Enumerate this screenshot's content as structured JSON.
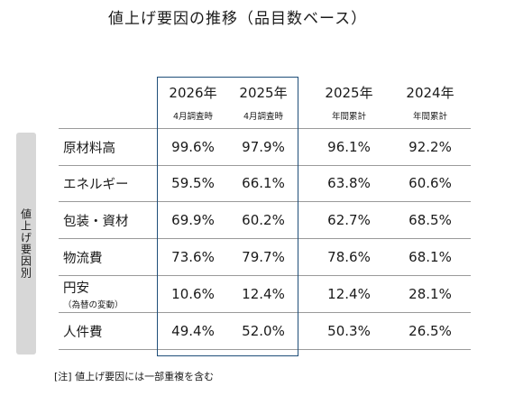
{
  "title": "値上げ要因の推移（品目数ベース）",
  "side_label": "値上げ要因別",
  "columns": [
    {
      "year": "2026年",
      "sub": "4月調査時"
    },
    {
      "year": "2025年",
      "sub": "4月調査時"
    },
    {
      "year": "2025年",
      "sub": "年間累計"
    },
    {
      "year": "2024年",
      "sub": "年間累計"
    }
  ],
  "rows": [
    {
      "label": "原材料高",
      "sub": "",
      "values": [
        "99.6%",
        "97.9%",
        "96.1%",
        "92.2%"
      ]
    },
    {
      "label": "エネルギー",
      "sub": "",
      "values": [
        "59.5%",
        "66.1%",
        "63.8%",
        "60.6%"
      ]
    },
    {
      "label": "包装・資材",
      "sub": "",
      "values": [
        "69.9%",
        "60.2%",
        "62.7%",
        "68.5%"
      ]
    },
    {
      "label": "物流費",
      "sub": "",
      "values": [
        "73.6%",
        "79.7%",
        "78.6%",
        "68.1%"
      ]
    },
    {
      "label": "円安",
      "sub": "（為替の変動）",
      "values": [
        "10.6%",
        "12.4%",
        "12.4%",
        "28.1%"
      ]
    },
    {
      "label": "人件費",
      "sub": "",
      "values": [
        "49.4%",
        "52.0%",
        "50.3%",
        "26.5%"
      ]
    }
  ],
  "note": "[注] 値上げ要因には一部重複を含む",
  "colors": {
    "highlight_border": "#1f4e79",
    "side_label_bg": "#d7d7d7",
    "rule": "#9a9a9a"
  }
}
